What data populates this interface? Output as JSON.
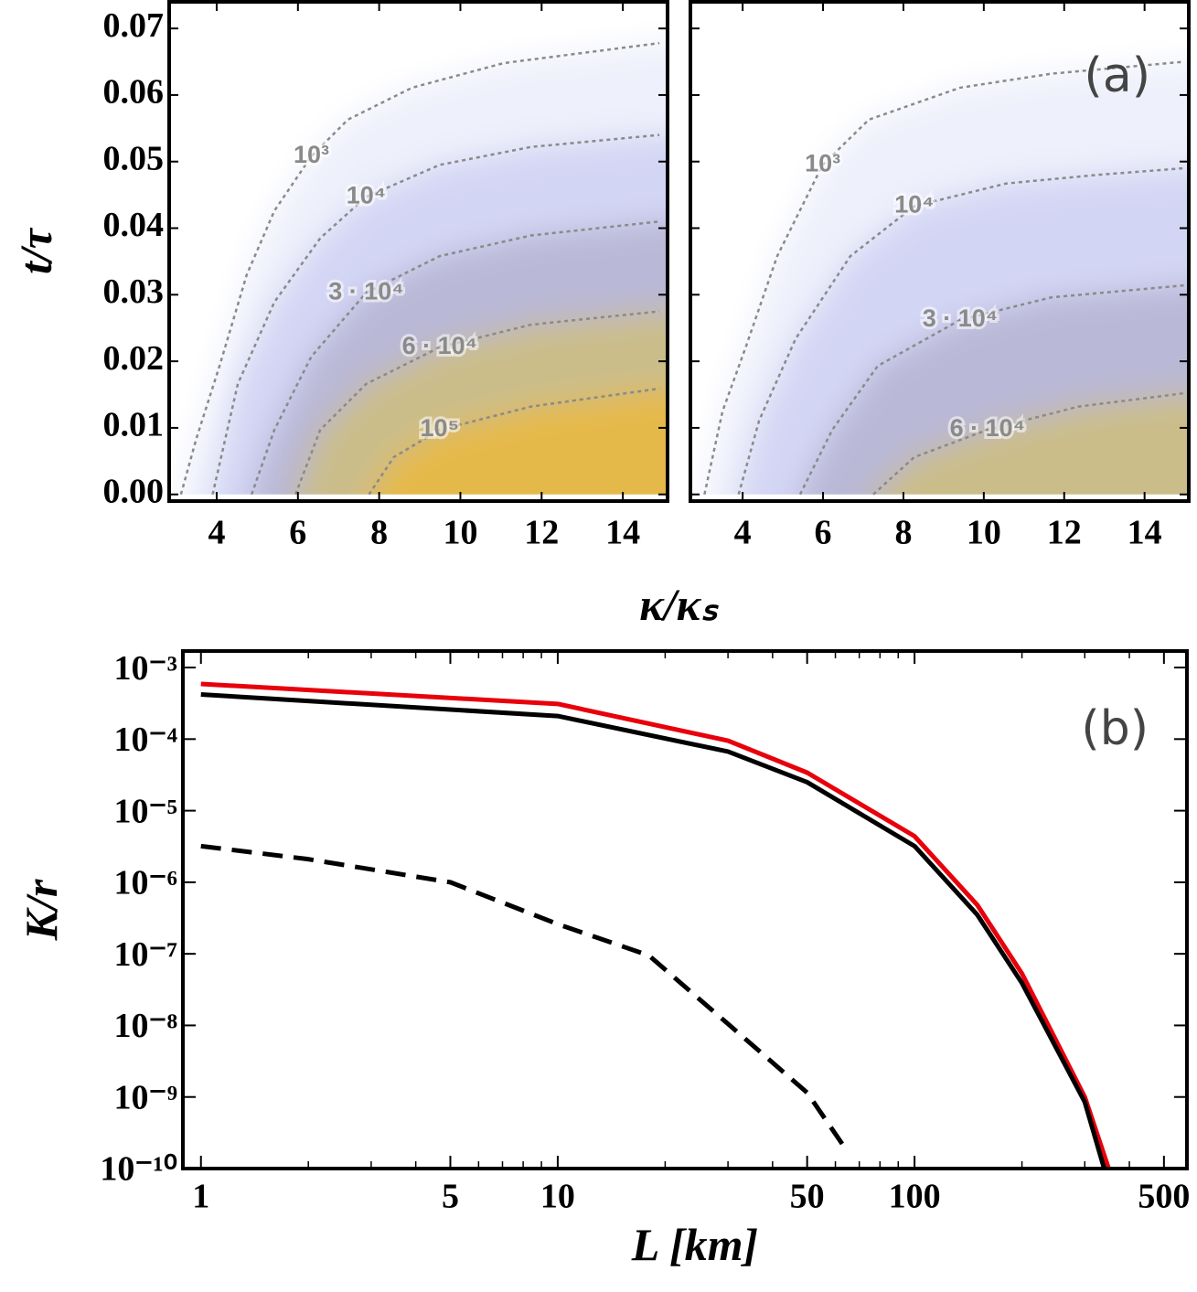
{
  "chart_data": [
    {
      "type": "contour",
      "xlabel": "κ/κₛ",
      "ylabel": "t/τ",
      "xlim": [
        2.83,
        15.1
      ],
      "ylim": [
        -0.001,
        0.074
      ],
      "xticks": [
        4,
        6,
        8,
        10,
        12,
        14
      ],
      "yticks": [
        {
          "value": 0,
          "label": "0.00"
        },
        0.01,
        0.02,
        0.03,
        0.04,
        0.05,
        0.06,
        0.07
      ],
      "line_color": "#8a8a8a",
      "contours": [
        {
          "label": "10³",
          "x": [
            3.12,
            3.5,
            4.07,
            4.74,
            5.42,
            6.33,
            7.23,
            8.81,
            11.07,
            14.9
          ],
          "y": [
            0,
            0.0084,
            0.0193,
            0.033,
            0.0426,
            0.0508,
            0.0563,
            0.0611,
            0.0648,
            0.0678
          ]
        },
        {
          "label": "10⁴",
          "x": [
            3.9,
            4.52,
            5.42,
            6.55,
            7.68,
            9.49,
            11.74,
            14.9
          ],
          "y": [
            0,
            0.0166,
            0.0289,
            0.0385,
            0.0447,
            0.0495,
            0.0522,
            0.054
          ]
        },
        {
          "label": "3 · 10⁴",
          "x": [
            4.86,
            5.42,
            6.33,
            7.68,
            9.49,
            11.74,
            14.9
          ],
          "y": [
            0,
            0.0097,
            0.0207,
            0.0303,
            0.0358,
            0.0389,
            0.041
          ]
        },
        {
          "label": "6 · 10⁴",
          "x": [
            5.94,
            6.55,
            7.68,
            9.49,
            11.74,
            14.9
          ],
          "y": [
            0,
            0.0097,
            0.0166,
            0.0221,
            0.0255,
            0.0275
          ]
        },
        {
          "label": "10⁵",
          "x": [
            7.75,
            8.36,
            9.49,
            11.74,
            14.9
          ],
          "y": [
            0,
            0.0056,
            0.0097,
            0.0132,
            0.0159
          ]
        }
      ]
    },
    {
      "type": "contour",
      "panel_label": "(a)",
      "xlim": [
        2.7,
        15.1
      ],
      "ylim": [
        -0.001,
        0.074
      ],
      "xticks": [
        4,
        6,
        8,
        10,
        12,
        14
      ],
      "line_color": "#8a8a8a",
      "contours": [
        {
          "label": "10³",
          "x": [
            3.05,
            3.5,
            4.07,
            4.86,
            5.99,
            7.14,
            9.41,
            11.68,
            14.98
          ],
          "y": [
            0,
            0.0125,
            0.022,
            0.0358,
            0.0495,
            0.0563,
            0.0611,
            0.0632,
            0.065
          ]
        },
        {
          "label": "10⁴",
          "x": [
            3.9,
            4.41,
            5.32,
            6.68,
            8.27,
            10.55,
            12.82,
            14.98
          ],
          "y": [
            0,
            0.0111,
            0.0234,
            0.0358,
            0.0433,
            0.0467,
            0.048,
            0.049
          ]
        },
        {
          "label": "3 · 10⁴",
          "x": [
            5.43,
            6.23,
            7.36,
            9.41,
            11.68,
            14.98
          ],
          "y": [
            0,
            0.0097,
            0.0193,
            0.0262,
            0.0296,
            0.0314
          ]
        },
        {
          "label": "6 · 10⁴",
          "x": [
            7.25,
            8.27,
            10.09,
            12.36,
            14.98
          ],
          "y": [
            0,
            0.0056,
            0.0097,
            0.0132,
            0.0152
          ]
        }
      ]
    },
    {
      "type": "line",
      "panel_label": "(b)",
      "xlabel": "L [km]",
      "ylabel": "K/r",
      "xscale": "log",
      "yscale": "log",
      "xlim": [
        0.89,
        580
      ],
      "ylim": [
        1e-10,
        0.0017
      ],
      "xticks": [
        1,
        5,
        10,
        50,
        100,
        500
      ],
      "xminorticks": [
        2,
        3,
        4,
        6,
        7,
        8,
        9,
        20,
        30,
        40,
        60,
        70,
        80,
        90,
        200,
        300,
        400
      ],
      "yticks": [
        {
          "value": 0.001,
          "label": "10⁻³"
        },
        {
          "value": 0.0001,
          "label": "10⁻⁴"
        },
        {
          "value": 1e-05,
          "label": "10⁻⁵"
        },
        {
          "value": 1e-06,
          "label": "10⁻⁶"
        },
        {
          "value": 1e-07,
          "label": "10⁻⁷"
        },
        {
          "value": 1e-08,
          "label": "10⁻⁸"
        },
        {
          "value": 1e-09,
          "label": "10⁻⁹"
        },
        {
          "value": 1e-10,
          "label": "10⁻¹⁰"
        }
      ],
      "series": [
        {
          "color": "#e8000b",
          "style": "solid",
          "x": [
            1,
            10,
            30,
            50,
            100,
            150,
            200,
            300,
            350
          ],
          "values": [
            0.00059,
            0.00031,
            9.5e-05,
            3.4e-05,
            4.4e-06,
            4.8e-07,
            5.3e-08,
            1e-09,
            1e-10
          ]
        },
        {
          "color": "#000000",
          "style": "solid",
          "x": [
            1,
            10,
            30,
            50,
            100,
            150,
            200,
            300,
            340
          ],
          "values": [
            0.00042,
            0.00021,
            6.7e-05,
            2.5e-05,
            3.2e-06,
            3.5e-07,
            3.9e-08,
            8.5e-10,
            1e-10
          ]
        },
        {
          "color": "#000000",
          "style": "dashed",
          "x": [
            1,
            2,
            5,
            10,
            18,
            30,
            50,
            65
          ],
          "values": [
            3.2e-06,
            2.1e-06,
            1e-06,
            2.6e-07,
            9.5e-08,
            1.05e-08,
            1.15e-09,
            1.7e-10
          ]
        }
      ]
    }
  ]
}
